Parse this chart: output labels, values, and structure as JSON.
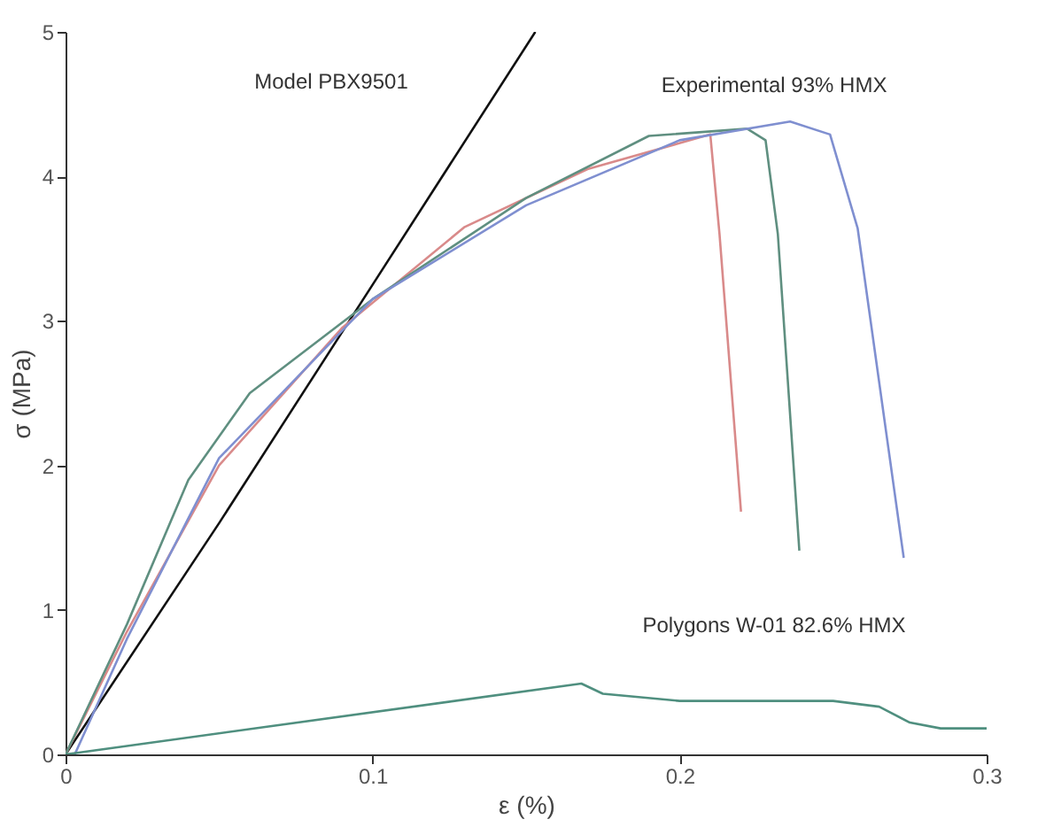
{
  "chart_data": {
    "type": "line",
    "xlabel": "ε (%)",
    "ylabel": "σ (MPa)",
    "xlim": [
      0,
      0.3
    ],
    "ylim": [
      0,
      5
    ],
    "xticks": [
      0,
      0.1,
      0.2,
      0.3
    ],
    "yticks": [
      0,
      1,
      2,
      3,
      4,
      5
    ],
    "grid": false,
    "legend": false,
    "marker": "none",
    "line_style": "solid",
    "series": [
      {
        "color": "#111111",
        "x": [
          0,
          0.05,
          0.1,
          0.153
        ],
        "values": [
          0,
          1.6,
          3.25,
          5
        ]
      },
      {
        "color": "#d98a8a",
        "x": [
          0,
          0.02,
          0.05,
          0.09,
          0.13,
          0.17,
          0.21,
          0.213,
          0.22
        ],
        "values": [
          0,
          0.85,
          2.0,
          2.95,
          3.65,
          4.05,
          4.29,
          3.6,
          1.68
        ]
      },
      {
        "color": "#5f8f80",
        "x": [
          0,
          0.02,
          0.04,
          0.06,
          0.1,
          0.15,
          0.19,
          0.222,
          0.228,
          0.232,
          0.239
        ],
        "values": [
          0,
          0.9,
          1.9,
          2.5,
          3.15,
          3.85,
          4.28,
          4.33,
          4.25,
          3.6,
          1.41
        ]
      },
      {
        "color": "#7f8fd0",
        "x": [
          0.003,
          0.02,
          0.05,
          0.1,
          0.15,
          0.2,
          0.236,
          0.249,
          0.258,
          0.273
        ],
        "values": [
          0,
          0.8,
          2.05,
          3.15,
          3.8,
          4.25,
          4.38,
          4.29,
          3.64,
          1.36
        ]
      },
      {
        "color": "#4f8f7f",
        "x": [
          0,
          0.168,
          0.175,
          0.2,
          0.25,
          0.265,
          0.275,
          0.285,
          0.3
        ],
        "values": [
          0,
          0.49,
          0.42,
          0.37,
          0.37,
          0.33,
          0.22,
          0.18,
          0.18
        ]
      }
    ],
    "annotations": [
      "Model PBX9501",
      "Experimental 93% HMX",
      "Polygons W-01 82.6% HMX"
    ]
  }
}
